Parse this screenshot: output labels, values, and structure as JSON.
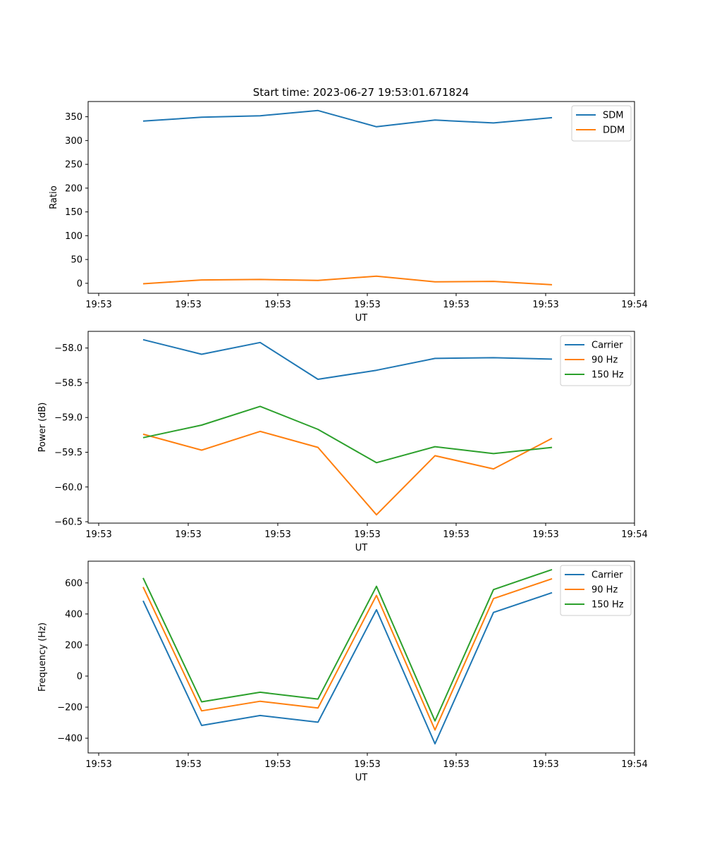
{
  "figure_title": "Start time: 2023-06-27 19:53:01.671824",
  "colors": {
    "blue": "#1f77b4",
    "orange": "#ff7f0e",
    "green": "#2ca02c"
  },
  "chart_data": [
    {
      "type": "line",
      "title": "Start time: 2023-06-27 19:53:01.671824",
      "xlabel": "UT",
      "ylabel": "Ratio",
      "x": [
        "19:53:02.6",
        "19:53:03.6",
        "19:53:04.6",
        "19:53:05.6",
        "19:53:06.6",
        "19:53:07.6",
        "19:53:08.6",
        "19:53:09.6"
      ],
      "xlim": [
        "19:53:01.67",
        "19:53:10.9"
      ],
      "xticks": [
        "19:53",
        "19:53",
        "19:53",
        "19:53",
        "19:53",
        "19:53",
        "19:54"
      ],
      "ylim": [
        -21,
        382
      ],
      "yticks": [
        "0",
        "50",
        "100",
        "150",
        "200",
        "250",
        "300",
        "350"
      ],
      "legend": "top-right",
      "series": [
        {
          "name": "SDM",
          "color": "#1f77b4",
          "values": [
            341,
            349,
            352,
            363,
            329,
            343,
            337,
            348
          ]
        },
        {
          "name": "DDM",
          "color": "#ff7f0e",
          "values": [
            -1,
            7,
            8,
            6,
            15,
            3,
            4,
            -3
          ]
        }
      ]
    },
    {
      "type": "line",
      "xlabel": "UT",
      "ylabel": "Power (dB)",
      "x": [
        "19:53:02.6",
        "19:53:03.6",
        "19:53:04.6",
        "19:53:05.6",
        "19:53:06.6",
        "19:53:07.6",
        "19:53:08.6",
        "19:53:09.6"
      ],
      "xlim": [
        "19:53:01.67",
        "19:53:10.9"
      ],
      "xticks": [
        "19:53",
        "19:53",
        "19:53",
        "19:53",
        "19:53",
        "19:53",
        "19:54"
      ],
      "ylim": [
        -60.52,
        -57.76
      ],
      "yticks": [
        "−60.5",
        "−60.0",
        "−59.5",
        "−59.0",
        "−58.5",
        "−58.0"
      ],
      "legend": "top-right",
      "series": [
        {
          "name": "Carrier",
          "color": "#1f77b4",
          "values": [
            -57.88,
            -58.09,
            -57.92,
            -58.45,
            -58.32,
            -58.15,
            -58.14,
            -58.16
          ]
        },
        {
          "name": "90 Hz",
          "color": "#ff7f0e",
          "values": [
            -59.24,
            -59.47,
            -59.2,
            -59.43,
            -60.4,
            -59.55,
            -59.74,
            -59.3
          ]
        },
        {
          "name": "150 Hz",
          "color": "#2ca02c",
          "values": [
            -59.29,
            -59.11,
            -58.84,
            -59.17,
            -59.65,
            -59.42,
            -59.52,
            -59.43
          ]
        }
      ]
    },
    {
      "type": "line",
      "xlabel": "UT",
      "ylabel": "Frequency (Hz)",
      "x": [
        "19:53:02.6",
        "19:53:03.6",
        "19:53:04.6",
        "19:53:05.6",
        "19:53:06.6",
        "19:53:07.6",
        "19:53:08.6",
        "19:53:09.6"
      ],
      "xlim": [
        "19:53:01.67",
        "19:53:10.9"
      ],
      "xticks": [
        "19:53",
        "19:53",
        "19:53",
        "19:53",
        "19:53",
        "19:53",
        "19:54"
      ],
      "ylim": [
        -495,
        740
      ],
      "yticks": [
        "−400",
        "−200",
        "0",
        "200",
        "400",
        "600"
      ],
      "legend": "top-right",
      "series": [
        {
          "name": "Carrier",
          "color": "#1f77b4",
          "values": [
            485,
            -318,
            -254,
            -297,
            427,
            -436,
            410,
            537
          ]
        },
        {
          "name": "90 Hz",
          "color": "#ff7f0e",
          "values": [
            574,
            -224,
            -162,
            -206,
            520,
            -347,
            499,
            627
          ]
        },
        {
          "name": "150 Hz",
          "color": "#2ca02c",
          "values": [
            632,
            -166,
            -104,
            -148,
            578,
            -289,
            557,
            686
          ]
        }
      ]
    }
  ]
}
